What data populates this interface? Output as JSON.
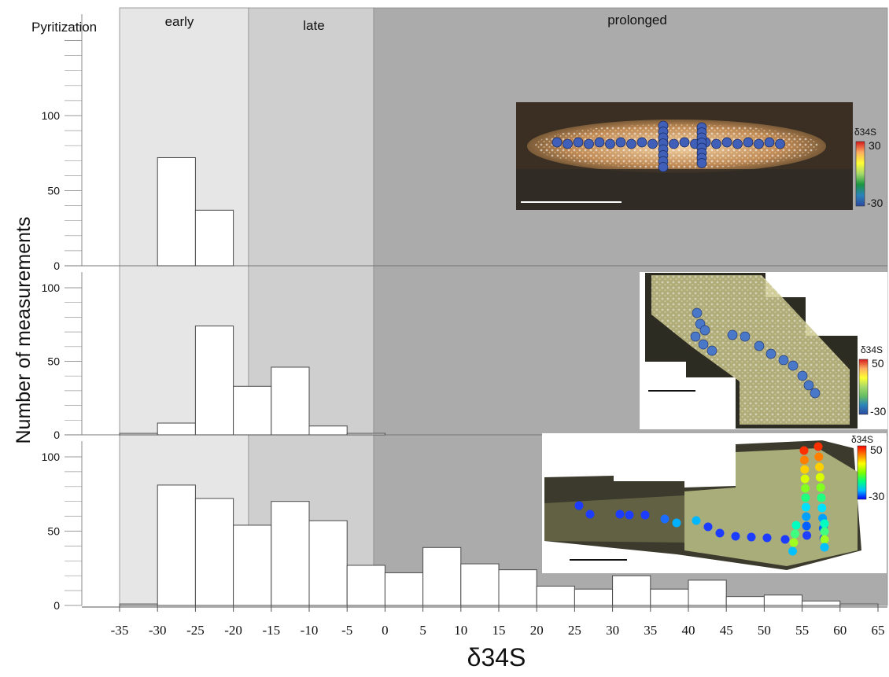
{
  "header": {
    "pyritization_label": "Pyritization",
    "zone_early": "early",
    "zone_late": "late",
    "zone_prolonged": "prolonged"
  },
  "colors": {
    "zone_early": "#e6e6e6",
    "zone_late": "#cfcfcf",
    "zone_prolonged": "#ababab",
    "bar_fill": "#ffffff",
    "bar_stroke": "#4a4a4a"
  },
  "chart_data": {
    "type": "bar",
    "layout": "three stacked histogram panels sharing one x axis",
    "xlabel": "δ34S",
    "ylabel": "Number of measurements",
    "x_ticks": [
      "-35",
      "-30",
      "-25",
      "-20",
      "-15",
      "-10",
      "-5",
      "0",
      "5",
      "10",
      "15",
      "20",
      "25",
      "30",
      "35",
      "40",
      "45",
      "50",
      "55",
      "60",
      "65"
    ],
    "bin_width": 5,
    "zones": [
      {
        "label": "early",
        "x_range": [
          -35,
          -18
        ]
      },
      {
        "label": "late",
        "x_range": [
          -18,
          -1.5
        ]
      },
      {
        "label": "prolonged",
        "x_range": [
          -1.5,
          65
        ]
      }
    ],
    "panels": [
      {
        "ylim": [
          0,
          140
        ],
        "y_ticks": [
          "0",
          "50",
          "100"
        ],
        "bars": [
          {
            "start": -30,
            "value": 72
          },
          {
            "start": -25,
            "value": 37
          }
        ],
        "inset": {
          "colorbar_title": "δ34S",
          "colorbar_max": "30",
          "colorbar_min": "-30",
          "colormap": [
            "#d7191c",
            "#fdae61",
            "#ffff33",
            "#a6d96a",
            "#1a9641",
            "#2b83ba",
            "#2c4aa0"
          ]
        }
      },
      {
        "ylim": [
          0,
          100
        ],
        "y_ticks": [
          "0",
          "50",
          "100"
        ],
        "bars": [
          {
            "start": -35,
            "value": 1
          },
          {
            "start": -30,
            "value": 8
          },
          {
            "start": -25,
            "value": 74
          },
          {
            "start": -20,
            "value": 33
          },
          {
            "start": -15,
            "value": 46
          },
          {
            "start": -10,
            "value": 6
          },
          {
            "start": -5,
            "value": 1
          }
        ],
        "inset": {
          "colorbar_title": "δ34S",
          "colorbar_max": "50",
          "colorbar_min": "-30",
          "colormap": [
            "#d7191c",
            "#fdae61",
            "#ffff33",
            "#a6d96a",
            "#66bd63",
            "#2b83ba",
            "#2c4aa0"
          ]
        }
      },
      {
        "ylim": [
          0,
          100
        ],
        "y_ticks": [
          "0",
          "50",
          "100"
        ],
        "bars": [
          {
            "start": -35,
            "value": 1
          },
          {
            "start": -30,
            "value": 81
          },
          {
            "start": -25,
            "value": 72
          },
          {
            "start": -20,
            "value": 54
          },
          {
            "start": -15,
            "value": 70
          },
          {
            "start": -10,
            "value": 57
          },
          {
            "start": -5,
            "value": 27
          },
          {
            "start": 0,
            "value": 22
          },
          {
            "start": 5,
            "value": 39
          },
          {
            "start": 10,
            "value": 28
          },
          {
            "start": 15,
            "value": 24
          },
          {
            "start": 20,
            "value": 13
          },
          {
            "start": 25,
            "value": 11
          },
          {
            "start": 30,
            "value": 20
          },
          {
            "start": 35,
            "value": 11
          },
          {
            "start": 40,
            "value": 17
          },
          {
            "start": 45,
            "value": 6
          },
          {
            "start": 50,
            "value": 7
          },
          {
            "start": 55,
            "value": 3
          },
          {
            "start": 60,
            "value": 1
          }
        ],
        "inset": {
          "colorbar_title": "δ34S",
          "colorbar_max": "50",
          "colorbar_min": "-30",
          "colormap": [
            "#ff0000",
            "#ff8000",
            "#ffff00",
            "#80ff00",
            "#00ff80",
            "#00c0ff",
            "#0000ff"
          ]
        }
      }
    ]
  }
}
